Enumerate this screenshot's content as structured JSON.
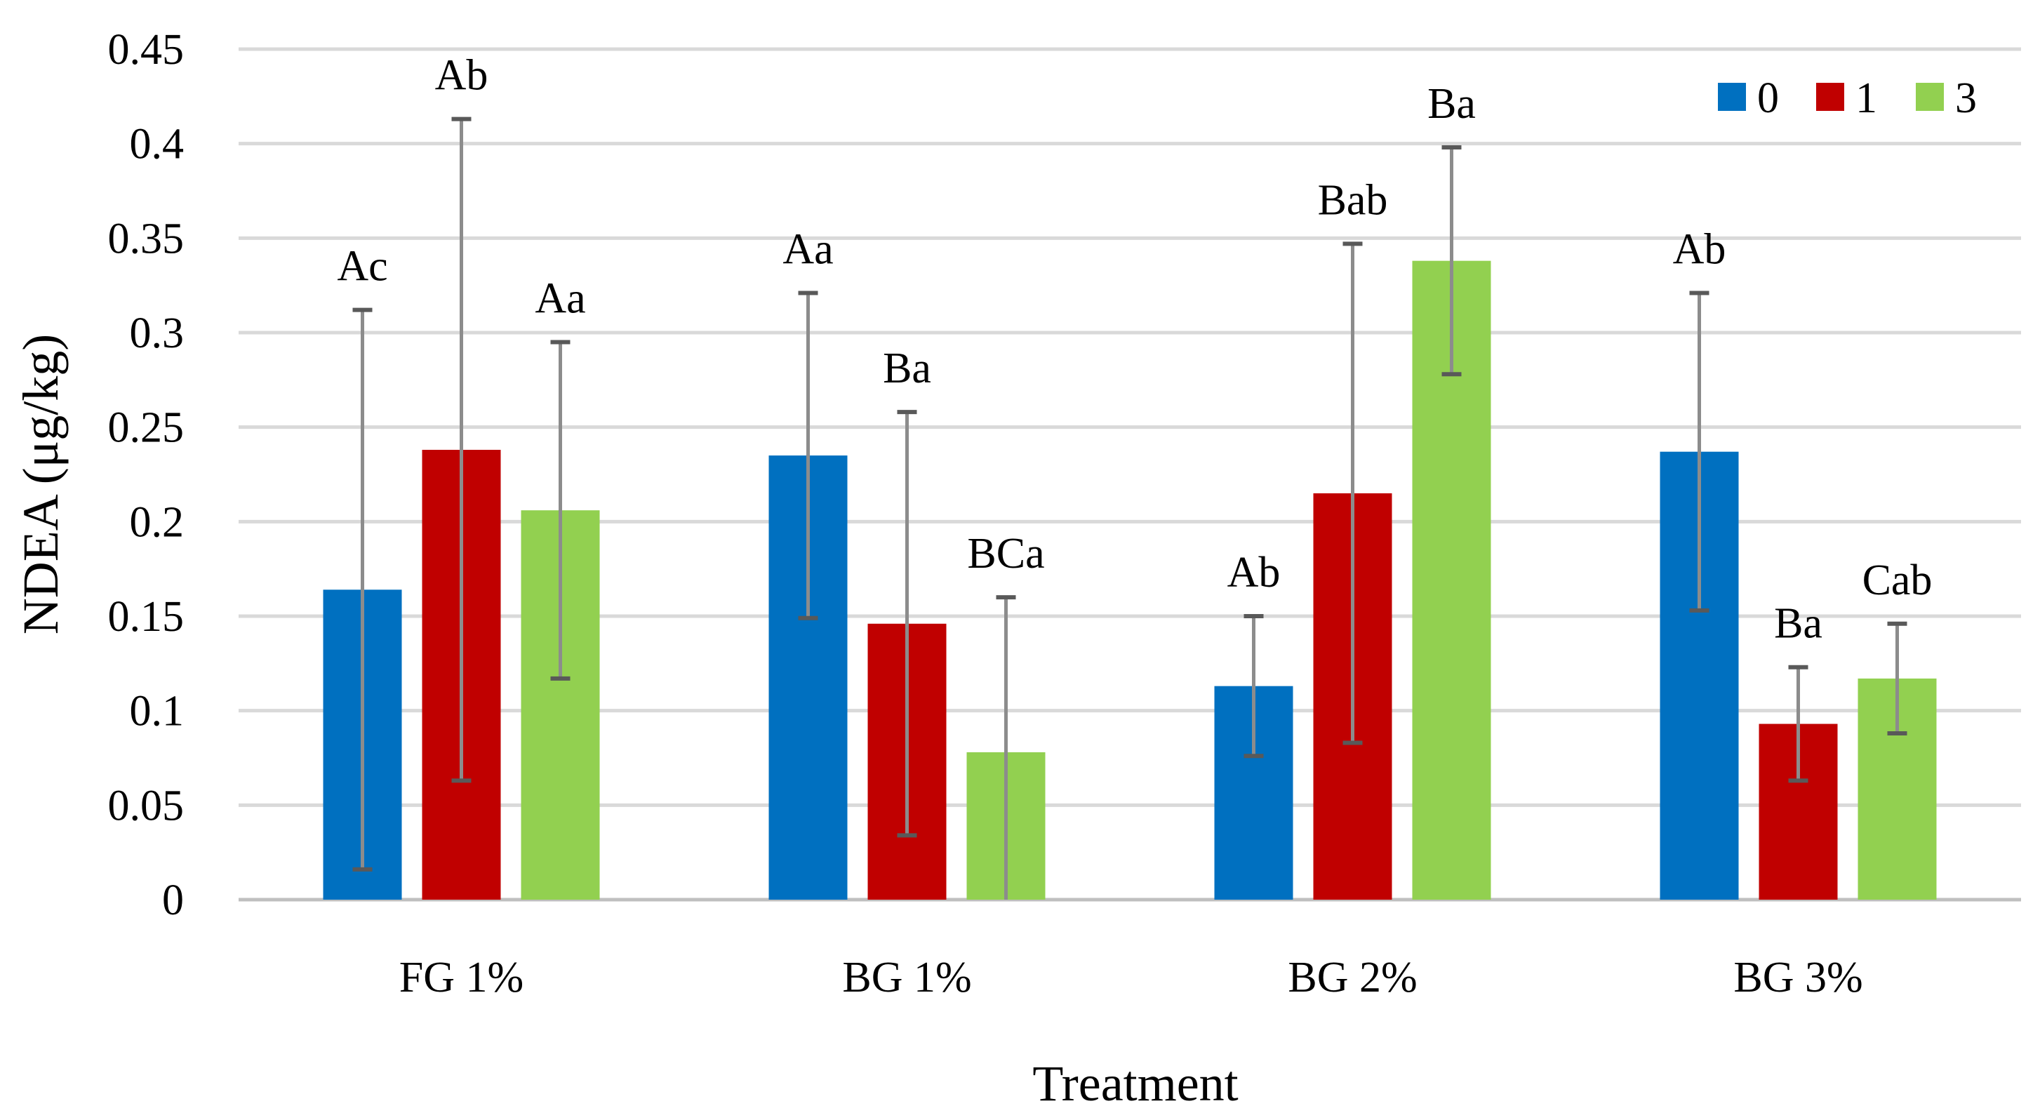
{
  "chart_data": {
    "type": "bar",
    "title": "",
    "xlabel": "Treatment",
    "ylabel": "NDEA (μg/kg)",
    "ylim": [
      0,
      0.45
    ],
    "yticks": [
      0,
      0.05,
      0.1,
      0.15,
      0.2,
      0.25,
      0.3,
      0.35,
      0.4,
      0.45
    ],
    "ytick_labels": [
      "0",
      "0.05",
      "0.1",
      "0.15",
      "0.2",
      "0.25",
      "0.3",
      "0.35",
      "0.4",
      "0.45"
    ],
    "grid": true,
    "legend_position": "top-right",
    "categories": [
      "FG 1%",
      "BG 1%",
      "BG 2%",
      "BG 3%"
    ],
    "series": [
      {
        "name": "0",
        "color": "#0070c0",
        "values": [
          0.164,
          0.235,
          0.113,
          0.237
        ],
        "errors": [
          0.148,
          0.086,
          0.037,
          0.084
        ],
        "labels": [
          "Ac",
          "Aa",
          "Ab",
          "Ab"
        ]
      },
      {
        "name": "1",
        "color": "#c00000",
        "values": [
          0.238,
          0.146,
          0.215,
          0.093
        ],
        "errors": [
          0.175,
          0.112,
          0.132,
          0.03
        ],
        "labels": [
          "Ab",
          "Ba",
          "Bab",
          "Ba"
        ]
      },
      {
        "name": "3",
        "color": "#92d050",
        "values": [
          0.206,
          0.078,
          0.338,
          0.117
        ],
        "errors": [
          0.089,
          0.082,
          0.06,
          0.029
        ],
        "labels": [
          "Aa",
          "BCa",
          "Ba",
          "Cab"
        ]
      }
    ]
  }
}
